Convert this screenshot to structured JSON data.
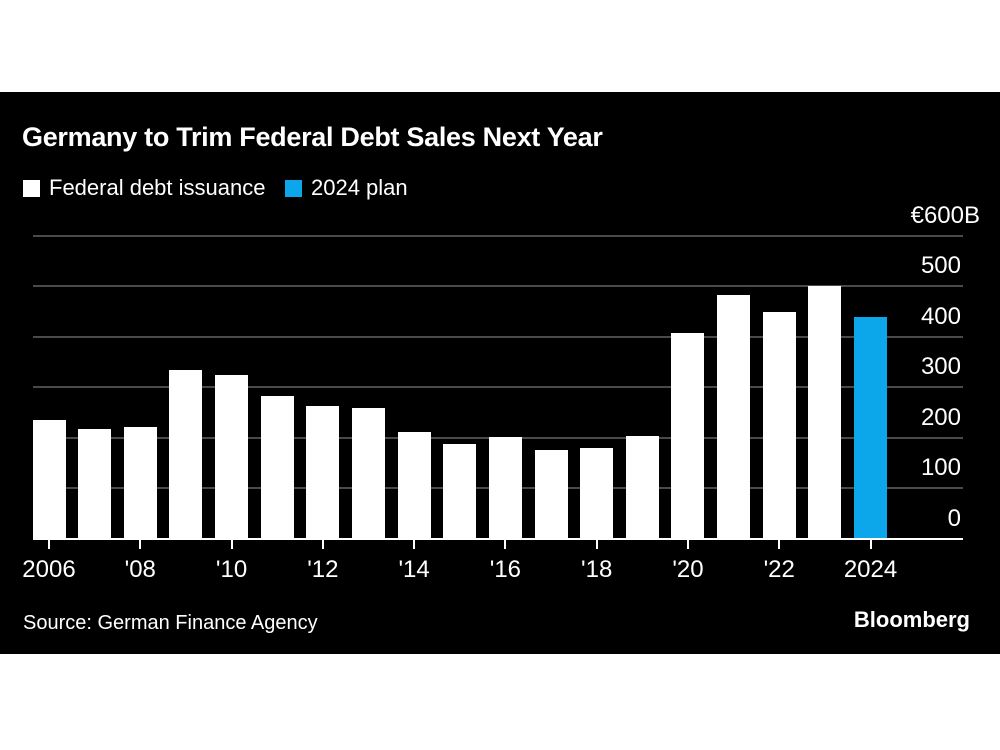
{
  "header": {
    "title": "Germany to Trim Federal Debt Sales Next Year"
  },
  "legend": {
    "items": [
      {
        "label": "Federal debt issuance",
        "color": "#ffffff"
      },
      {
        "label": "2024 plan",
        "color": "#0ca6ea"
      }
    ]
  },
  "footer": {
    "source": "Source: German Finance Agency",
    "brand": "Bloomberg"
  },
  "colors": {
    "page_background": "#ffffff",
    "panel_background": "#000000",
    "bar_default": "#ffffff",
    "bar_highlight": "#0ca6ea",
    "gridline": "#4a4a4a",
    "axis_line": "#ffffff",
    "text": "#ffffff"
  },
  "chart_data": {
    "type": "bar",
    "title": "Germany to Trim Federal Debt Sales Next Year",
    "unit": "billions of euros",
    "categories": [
      2006,
      2007,
      2008,
      2009,
      2010,
      2011,
      2012,
      2013,
      2014,
      2015,
      2016,
      2017,
      2018,
      2019,
      2020,
      2021,
      2022,
      2023,
      2024
    ],
    "series": [
      {
        "name": "Federal debt issuance",
        "color": "#ffffff",
        "values": [
          235,
          218,
          222,
          334,
          324,
          283,
          263,
          259,
          212,
          187,
          202,
          176,
          180,
          204,
          407,
          483,
          449,
          500,
          null
        ]
      },
      {
        "name": "2024 plan",
        "color": "#0ca6ea",
        "values": [
          null,
          null,
          null,
          null,
          null,
          null,
          null,
          null,
          null,
          null,
          null,
          null,
          null,
          null,
          null,
          null,
          null,
          null,
          440
        ]
      }
    ],
    "ylim": [
      0,
      600
    ],
    "y_ticks": [
      {
        "value": 600,
        "label": "€600B"
      },
      {
        "value": 500,
        "label": "500"
      },
      {
        "value": 400,
        "label": "400"
      },
      {
        "value": 300,
        "label": "300"
      },
      {
        "value": 200,
        "label": "200"
      },
      {
        "value": 100,
        "label": "100"
      },
      {
        "value": 0,
        "label": "0"
      }
    ],
    "x_ticks": [
      {
        "year": 2006,
        "label": "2006"
      },
      {
        "year": 2008,
        "label": "'08"
      },
      {
        "year": 2010,
        "label": "'10"
      },
      {
        "year": 2012,
        "label": "'12"
      },
      {
        "year": 2014,
        "label": "'14"
      },
      {
        "year": 2016,
        "label": "'16"
      },
      {
        "year": 2018,
        "label": "'18"
      },
      {
        "year": 2020,
        "label": "'20"
      },
      {
        "year": 2022,
        "label": "'22"
      },
      {
        "year": 2024,
        "label": "2024"
      }
    ],
    "grid": true,
    "legend_position": "top-left",
    "xlabel": "",
    "ylabel": ""
  }
}
